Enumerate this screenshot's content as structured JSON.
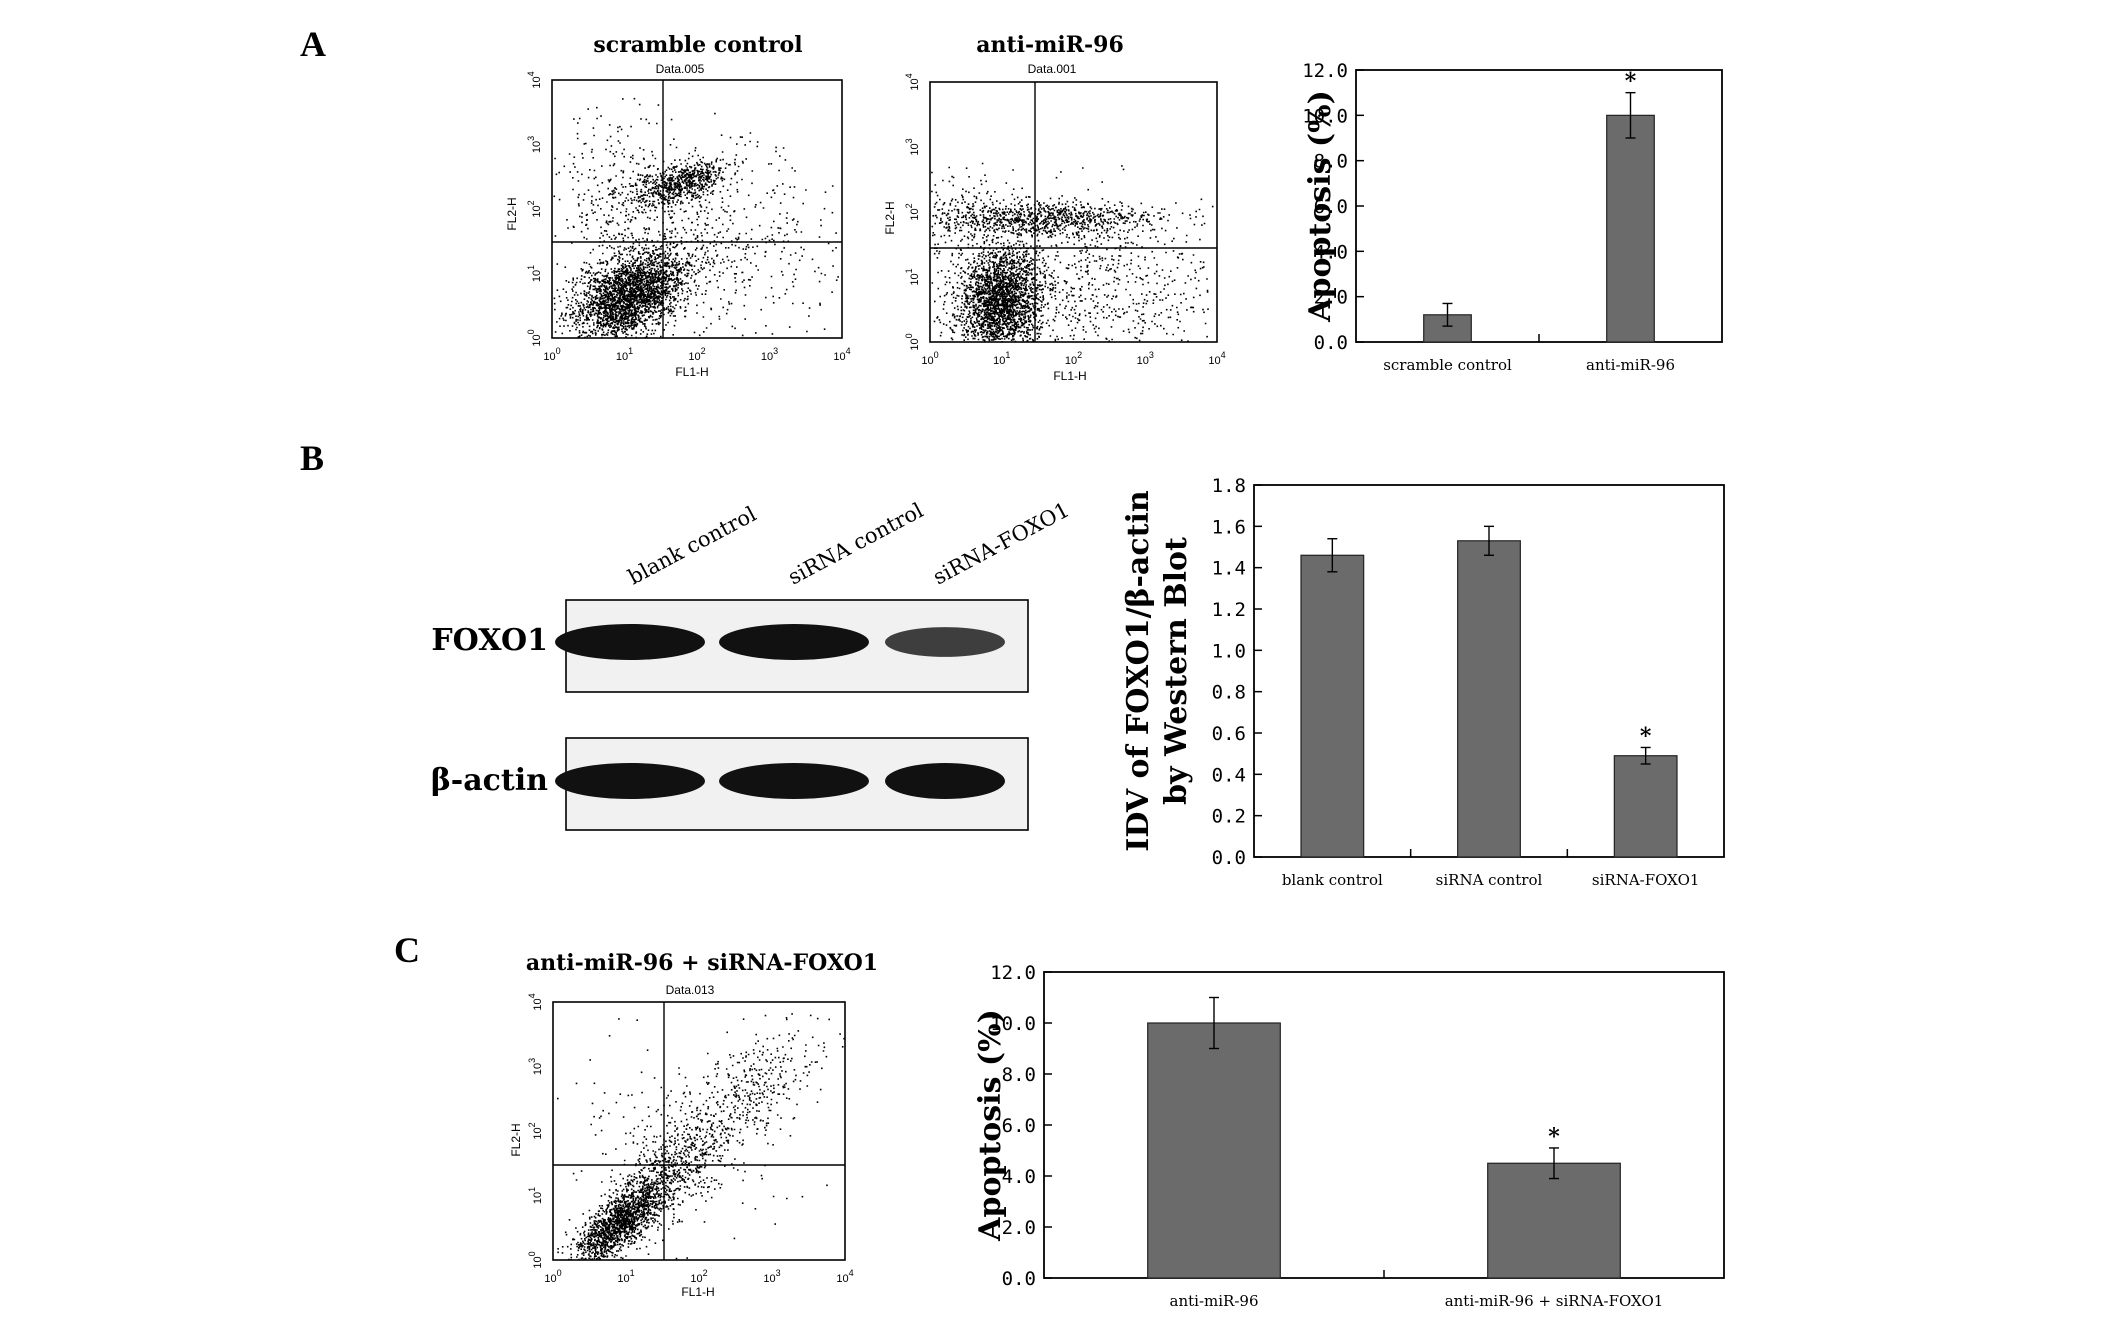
{
  "panels": {
    "a": {
      "letter": "A",
      "flow_plots": [
        {
          "title": "scramble control",
          "subtitle": "Data.005",
          "xlabel": "FL1-H",
          "ylabel": "FL2-H",
          "ticks": [
            {
              "m": "10",
              "e": "0"
            },
            {
              "m": "10",
              "e": "1"
            },
            {
              "m": "10",
              "e": "2"
            },
            {
              "m": "10",
              "e": "3"
            },
            {
              "m": "10",
              "e": "4"
            }
          ]
        },
        {
          "title": "anti-miR-96",
          "subtitle": "Data.001",
          "xlabel": "FL1-H",
          "ylabel": "FL2-H",
          "ticks": [
            {
              "m": "10",
              "e": "0"
            },
            {
              "m": "10",
              "e": "1"
            },
            {
              "m": "10",
              "e": "2"
            },
            {
              "m": "10",
              "e": "3"
            },
            {
              "m": "10",
              "e": "4"
            }
          ]
        }
      ]
    },
    "b": {
      "letter": "B",
      "western_blot": {
        "lanes": [
          "blank control",
          "siRNA control",
          "siRNA-FOXO1"
        ],
        "rows": [
          {
            "label": "FOXO1",
            "band_intensity": [
              1.0,
              1.0,
              0.55
            ]
          },
          {
            "label": "β-actin",
            "band_intensity": [
              1.0,
              1.0,
              1.0
            ]
          }
        ]
      }
    },
    "c": {
      "letter": "C",
      "flow_plots": [
        {
          "title": "anti-miR-96 + siRNA-FOXO1",
          "subtitle": "Data.013",
          "xlabel": "FL1-H",
          "ylabel": "FL2-H",
          "ticks": [
            {
              "m": "10",
              "e": "0"
            },
            {
              "m": "10",
              "e": "1"
            },
            {
              "m": "10",
              "e": "2"
            },
            {
              "m": "10",
              "e": "3"
            },
            {
              "m": "10",
              "e": "4"
            }
          ]
        }
      ]
    }
  },
  "chart_data": [
    {
      "id": "A",
      "type": "bar",
      "categories": [
        "scramble control",
        "anti-miR-96"
      ],
      "values": [
        1.2,
        10.0
      ],
      "errors": [
        0.5,
        1.0
      ],
      "significance": [
        "",
        "*"
      ],
      "ylabel": "Apoptosis (%)",
      "ylim": [
        0,
        12
      ],
      "yticks": [
        "0.0",
        "2.0",
        "4.0",
        "6.0",
        "8.0",
        "10.0",
        "12.0"
      ],
      "bar_color": "#6b6b6b"
    },
    {
      "id": "B",
      "type": "bar",
      "categories": [
        "blank control",
        "siRNA control",
        "siRNA-FOXO1"
      ],
      "values": [
        1.46,
        1.53,
        0.49
      ],
      "errors": [
        0.08,
        0.07,
        0.04
      ],
      "significance": [
        "",
        "",
        "*"
      ],
      "ylabel": "IDV of FOXO1/β-actin",
      "ylabel2": "by Western Blot",
      "ylim": [
        0,
        1.8
      ],
      "yticks": [
        "0.0",
        "0.2",
        "0.4",
        "0.6",
        "0.8",
        "1.0",
        "1.2",
        "1.4",
        "1.6",
        "1.8"
      ],
      "bar_color": "#6b6b6b"
    },
    {
      "id": "C",
      "type": "bar",
      "categories": [
        "anti-miR-96",
        "anti-miR-96 + siRNA-FOXO1"
      ],
      "values": [
        10.0,
        4.5
      ],
      "errors": [
        1.0,
        0.6
      ],
      "significance": [
        "",
        "*"
      ],
      "ylabel": "Apoptosis (%)",
      "ylim": [
        0,
        12
      ],
      "yticks": [
        "0.0",
        "2.0",
        "4.0",
        "6.0",
        "8.0",
        "10.0",
        "12.0"
      ],
      "bar_color": "#6b6b6b"
    }
  ]
}
